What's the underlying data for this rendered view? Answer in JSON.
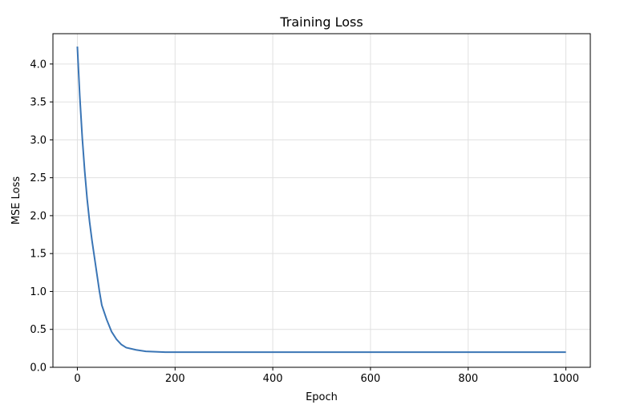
{
  "chart_data": {
    "type": "line",
    "title": "Training Loss",
    "xlabel": "Epoch",
    "ylabel": "MSE Loss",
    "xlim": [
      -50,
      1050
    ],
    "ylim": [
      0.0,
      4.4
    ],
    "xticks": [
      0,
      200,
      400,
      600,
      800,
      1000
    ],
    "xtick_labels": [
      "0",
      "200",
      "400",
      "600",
      "800",
      "1000"
    ],
    "yticks": [
      0.0,
      0.5,
      1.0,
      1.5,
      2.0,
      2.5,
      3.0,
      3.5,
      4.0
    ],
    "ytick_labels": [
      "0.0",
      "0.5",
      "1.0",
      "1.5",
      "2.0",
      "2.5",
      "3.0",
      "3.5",
      "4.0"
    ],
    "grid": true,
    "line_color": "#3a75b5",
    "series": [
      {
        "name": "",
        "x": [
          0,
          5,
          10,
          15,
          20,
          25,
          30,
          35,
          40,
          45,
          50,
          60,
          70,
          80,
          90,
          100,
          120,
          140,
          160,
          180,
          200,
          250,
          300,
          400,
          500,
          600,
          700,
          800,
          900,
          1000
        ],
        "y": [
          4.23,
          3.57,
          3.03,
          2.59,
          2.22,
          1.92,
          1.67,
          1.45,
          1.23,
          1.01,
          0.82,
          0.63,
          0.47,
          0.37,
          0.3,
          0.26,
          0.23,
          0.21,
          0.205,
          0.2,
          0.2,
          0.2,
          0.2,
          0.2,
          0.2,
          0.2,
          0.2,
          0.2,
          0.2,
          0.2
        ]
      }
    ]
  }
}
